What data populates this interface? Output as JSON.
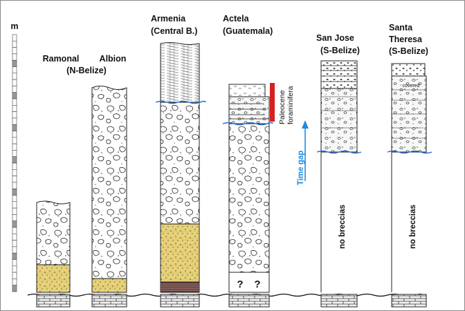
{
  "scale": {
    "unit": "m"
  },
  "columns": [
    {
      "title_line1": "Ramonal",
      "title_line2": "(N-Belize)"
    },
    {
      "title_line1": "Albion",
      "title_line2": ""
    },
    {
      "title_line1": "Armenia",
      "title_line2": "(Central B.)"
    },
    {
      "title_line1": "Actela",
      "title_line2": "(Guatemala)"
    },
    {
      "title_line1": "San Jose",
      "title_line2": "(S-Belize)"
    },
    {
      "title_line1": "Santa",
      "title_line2": "Theresa",
      "title_line3": "(S-Belize)"
    }
  ],
  "annotations": {
    "paleocene": "Paleocene",
    "foraminifera": "foraminifera",
    "time_gap": "Time gap",
    "no_breccias": "no breccias",
    "question": "?",
    "covered": "covered"
  },
  "colors": {
    "breccia_fill": "#ffffff",
    "sandstone": "#e6d27a",
    "contact_line": "#1f6fcf",
    "paleocene_bar": "#d62020",
    "time_gap_arrow": "#1e8be0",
    "limestone": "#f2f2f2"
  }
}
